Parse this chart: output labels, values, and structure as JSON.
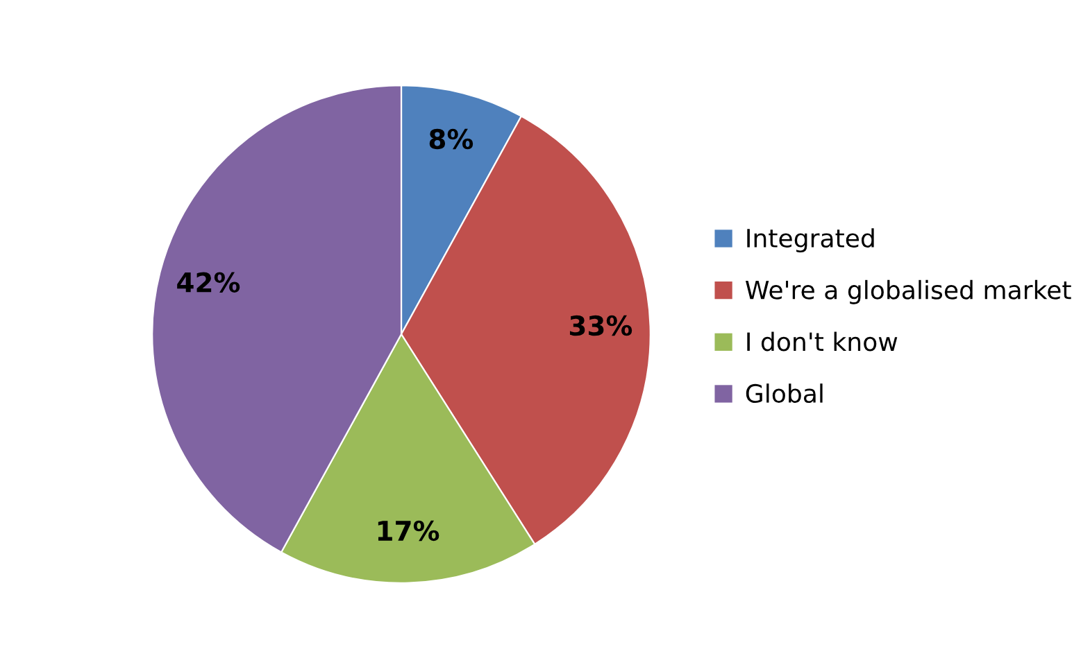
{
  "chart_data": {
    "type": "pie",
    "categories": [
      "Integrated",
      "We're a globalised market",
      "I don't know",
      "Global"
    ],
    "values": [
      8,
      33,
      17,
      42
    ],
    "colors": [
      "#4f81bd",
      "#c0504d",
      "#9bbb59",
      "#8064a2"
    ],
    "value_labels": [
      "8%",
      "33%",
      "17%",
      "42%"
    ],
    "legend": "right"
  }
}
